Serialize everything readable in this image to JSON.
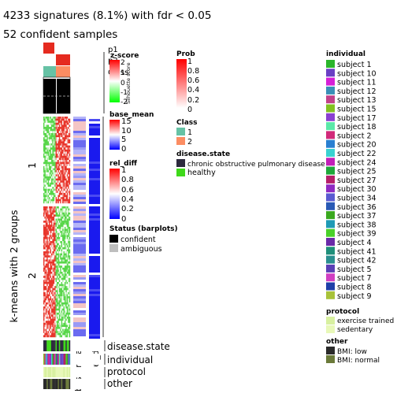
{
  "chart_data": {
    "type": "heatmap",
    "title": "4233 signatures (8.1%) with fdr < 0.05",
    "subtitle": "52 confident samples",
    "row_split_label": "k-means with 2 groups",
    "row_groups": [
      "1",
      "2"
    ],
    "top_annotation_labels": [
      "p1",
      "p2",
      "Class",
      "Silhouette score"
    ],
    "right_column_labels": [
      "base_mean",
      "rel_diff"
    ],
    "bottom_annotation_labels": [
      "disease.state",
      "individual",
      "protocol",
      "other"
    ],
    "legends": {
      "zscore": {
        "title": "z-score",
        "ticks": [
          "2",
          "1",
          "0",
          "-1",
          "-2"
        ],
        "colors": [
          "#ff0000",
          "#ffffff",
          "#00ff00"
        ]
      },
      "silhouette": {
        "title": "Silhouette score",
        "ticks": [
          "1",
          "0.5",
          "0"
        ]
      },
      "prob": {
        "title": "Prob",
        "ticks": [
          "1",
          "0.8",
          "0.6",
          "0.4",
          "0.2",
          "0"
        ],
        "colors": [
          "#ff0000",
          "#ffffff"
        ]
      },
      "class": {
        "title": "Class",
        "items": [
          {
            "label": "1",
            "color": "#66c2a5"
          },
          {
            "label": "2",
            "color": "#fc8d62"
          }
        ]
      },
      "disease_state": {
        "title": "disease.state",
        "items": [
          {
            "label": "chronic obstructive pulmonary disease",
            "color": "#2d2a3e"
          },
          {
            "label": "healthy",
            "color": "#3fd91a"
          }
        ]
      },
      "base_mean": {
        "title": "base_mean",
        "ticks": [
          "15",
          "10",
          "5",
          "0"
        ],
        "colors": [
          "#ff0000",
          "#ffffff",
          "#0000ff"
        ]
      },
      "rel_diff": {
        "title": "rel_diff",
        "ticks": [
          "1",
          "0.8",
          "0.6",
          "0.4",
          "0.2",
          "0"
        ],
        "colors": [
          "#ff0000",
          "#ffffff",
          "#0000ff"
        ]
      },
      "status": {
        "title": "Status (barplots)",
        "items": [
          {
            "label": "confident",
            "color": "#000000"
          },
          {
            "label": "ambiguous",
            "color": "#bebebe"
          }
        ]
      },
      "individual": {
        "title": "individual",
        "items": [
          {
            "label": "subject 1",
            "color": "#2bb52b"
          },
          {
            "label": "subject 10",
            "color": "#6a3fc4"
          },
          {
            "label": "subject 11",
            "color": "#d61fd6"
          },
          {
            "label": "subject 12",
            "color": "#3a8fb7"
          },
          {
            "label": "subject 13",
            "color": "#c2418a"
          },
          {
            "label": "subject 15",
            "color": "#82c21f"
          },
          {
            "label": "subject 17",
            "color": "#8a3fd1"
          },
          {
            "label": "subject 18",
            "color": "#5ae8a8"
          },
          {
            "label": "subject 2",
            "color": "#d12a7a"
          },
          {
            "label": "subject 20",
            "color": "#2a7fd1"
          },
          {
            "label": "subject 22",
            "color": "#3ad1d1"
          },
          {
            "label": "subject 24",
            "color": "#c21fb8"
          },
          {
            "label": "subject 25",
            "color": "#1fa83a"
          },
          {
            "label": "subject 27",
            "color": "#b51f6a"
          },
          {
            "label": "subject 30",
            "color": "#8f2ac2"
          },
          {
            "label": "subject 34",
            "color": "#5a5ad1"
          },
          {
            "label": "subject 36",
            "color": "#2a5ab5"
          },
          {
            "label": "subject 37",
            "color": "#3aa81f"
          },
          {
            "label": "subject 38",
            "color": "#1f9ab5"
          },
          {
            "label": "subject 39",
            "color": "#4ad12a"
          },
          {
            "label": "subject 4",
            "color": "#6a2aa8"
          },
          {
            "label": "subject 41",
            "color": "#1f8f7a"
          },
          {
            "label": "subject 42",
            "color": "#2a8f8f"
          },
          {
            "label": "subject 5",
            "color": "#5a3fb5"
          },
          {
            "label": "subject 7",
            "color": "#d13fc2"
          },
          {
            "label": "subject 8",
            "color": "#1f3fa8"
          },
          {
            "label": "subject 9",
            "color": "#a8c23a"
          }
        ]
      },
      "protocol": {
        "title": "protocol",
        "items": [
          {
            "label": "exercise trained",
            "color": "#d8f0a0"
          },
          {
            "label": "sedentary",
            "color": "#e8f8b8"
          }
        ]
      },
      "other": {
        "title": "other",
        "items": [
          {
            "label": "BMI: low",
            "color": "#2a2a2a"
          },
          {
            "label": "BMI: normal",
            "color": "#6b7a3a"
          }
        ]
      }
    }
  }
}
